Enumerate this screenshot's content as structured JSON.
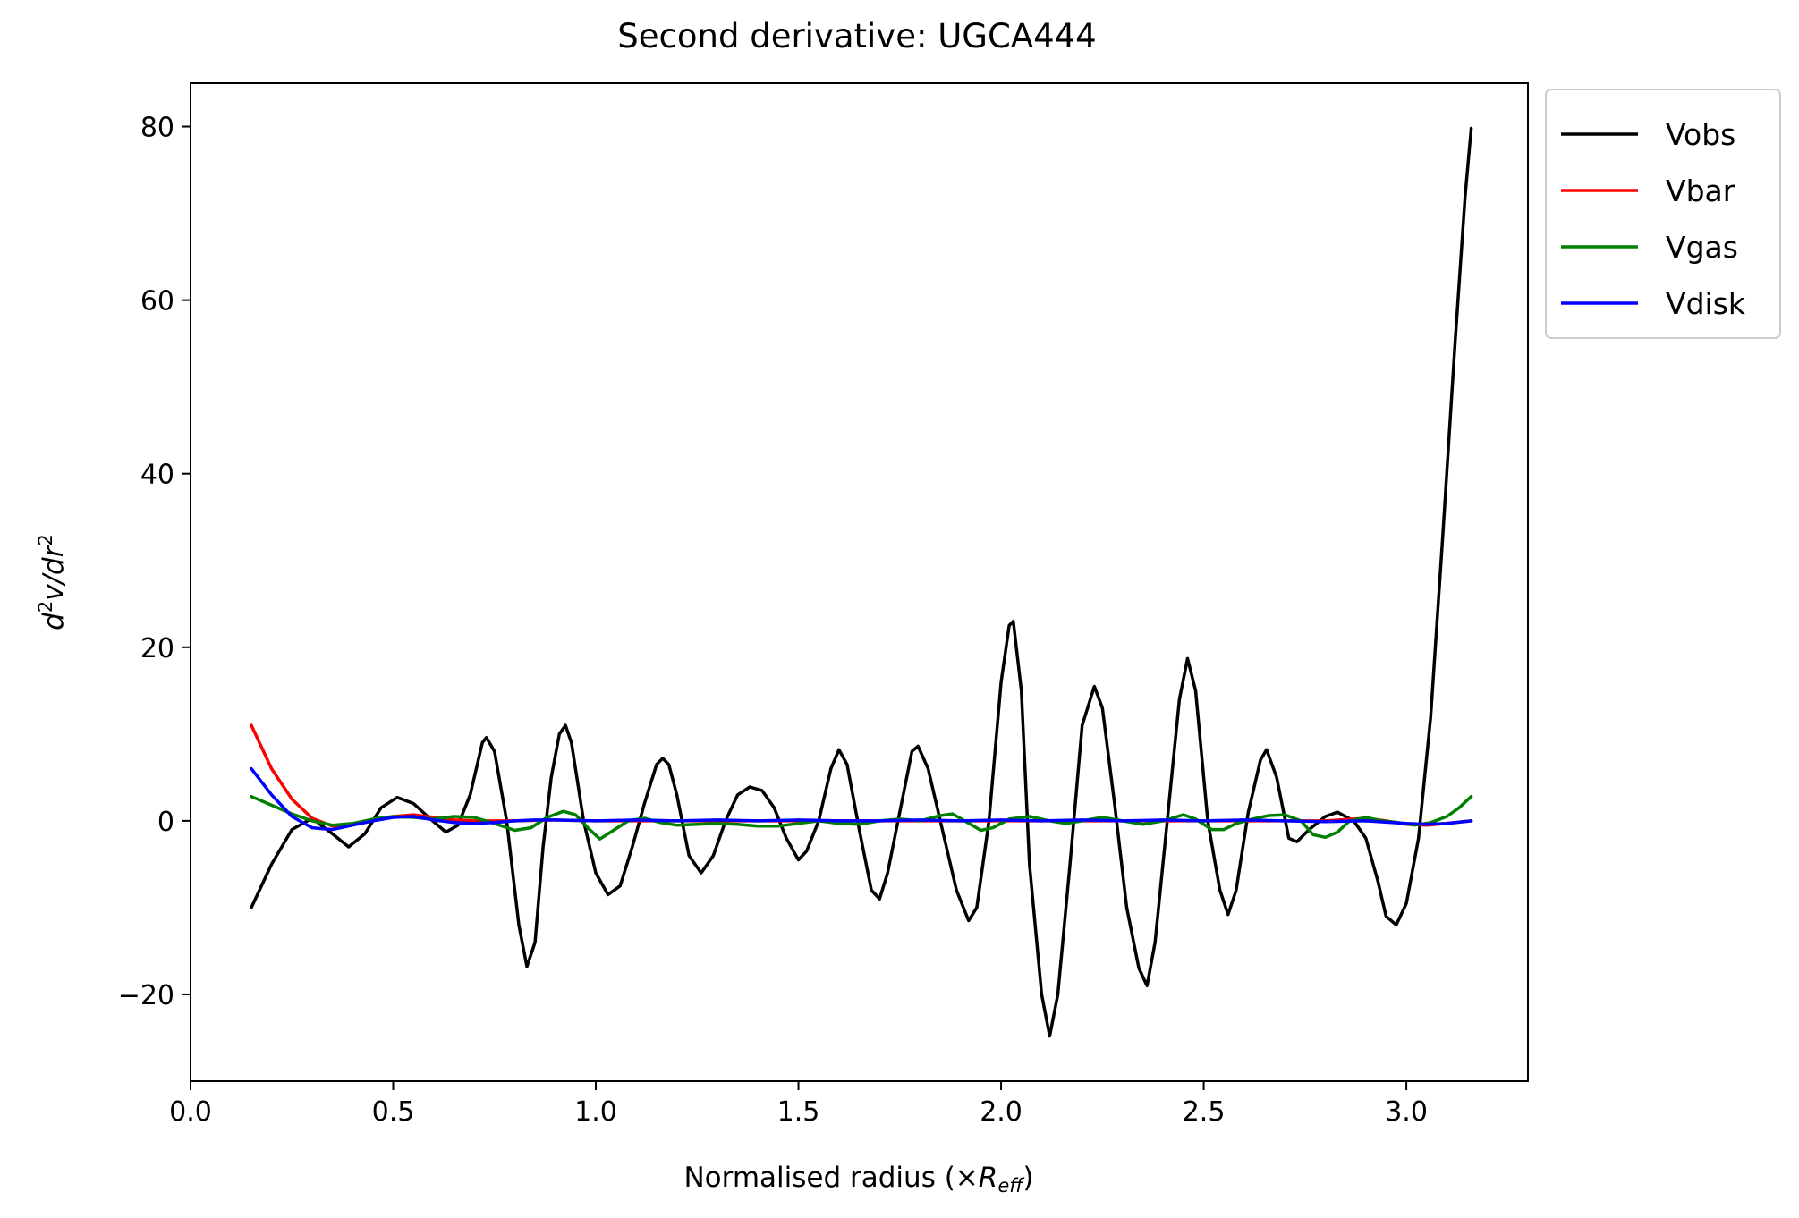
{
  "chart_data": {
    "type": "line",
    "title": "Second derivative: UGCA444",
    "xlabel": {
      "main": "Normalised radius (×",
      "var": "R",
      "sub": "eff",
      "close": ")"
    },
    "ylabel": {
      "d": "d",
      "sup1": "2",
      "mid": "v/dr",
      "sup2": "2"
    },
    "xlim": [
      0.0,
      3.3
    ],
    "ylim": [
      -30,
      85
    ],
    "xticks": [
      0.0,
      0.5,
      1.0,
      1.5,
      2.0,
      2.5,
      3.0
    ],
    "xtick_labels": [
      "0.0",
      "0.5",
      "1.0",
      "1.5",
      "2.0",
      "2.5",
      "3.0"
    ],
    "yticks": [
      -20,
      0,
      20,
      40,
      60,
      80
    ],
    "ytick_labels": [
      "−20",
      "0",
      "20",
      "40",
      "60",
      "80"
    ],
    "grid": false,
    "legend_position": "outside-top-right",
    "series": [
      {
        "name": "Vobs",
        "color": "#000000",
        "points": [
          [
            0.15,
            -10
          ],
          [
            0.2,
            -5
          ],
          [
            0.25,
            -1
          ],
          [
            0.3,
            0.3
          ],
          [
            0.35,
            -1.5
          ],
          [
            0.39,
            -3
          ],
          [
            0.43,
            -1.5
          ],
          [
            0.47,
            1.5
          ],
          [
            0.51,
            2.7
          ],
          [
            0.55,
            2
          ],
          [
            0.59,
            0.3
          ],
          [
            0.63,
            -1.3
          ],
          [
            0.66,
            -0.5
          ],
          [
            0.69,
            3
          ],
          [
            0.72,
            9
          ],
          [
            0.73,
            9.6
          ],
          [
            0.75,
            8
          ],
          [
            0.78,
            0
          ],
          [
            0.81,
            -12
          ],
          [
            0.83,
            -16.8
          ],
          [
            0.85,
            -14
          ],
          [
            0.87,
            -3
          ],
          [
            0.89,
            5
          ],
          [
            0.91,
            10
          ],
          [
            0.925,
            11
          ],
          [
            0.94,
            9
          ],
          [
            0.97,
            0
          ],
          [
            1.0,
            -6
          ],
          [
            1.03,
            -8.5
          ],
          [
            1.06,
            -7.5
          ],
          [
            1.09,
            -3
          ],
          [
            1.12,
            2
          ],
          [
            1.15,
            6.5
          ],
          [
            1.165,
            7.2
          ],
          [
            1.18,
            6.5
          ],
          [
            1.2,
            3
          ],
          [
            1.23,
            -4
          ],
          [
            1.26,
            -6
          ],
          [
            1.29,
            -4
          ],
          [
            1.32,
            0
          ],
          [
            1.35,
            3
          ],
          [
            1.38,
            3.9
          ],
          [
            1.41,
            3.5
          ],
          [
            1.44,
            1.5
          ],
          [
            1.47,
            -2
          ],
          [
            1.5,
            -4.5
          ],
          [
            1.52,
            -3.5
          ],
          [
            1.55,
            0
          ],
          [
            1.58,
            6
          ],
          [
            1.6,
            8.2
          ],
          [
            1.62,
            6.5
          ],
          [
            1.65,
            -1
          ],
          [
            1.68,
            -8
          ],
          [
            1.7,
            -9
          ],
          [
            1.72,
            -6
          ],
          [
            1.75,
            1
          ],
          [
            1.78,
            8
          ],
          [
            1.795,
            8.6
          ],
          [
            1.82,
            6
          ],
          [
            1.85,
            0
          ],
          [
            1.89,
            -8
          ],
          [
            1.92,
            -11.5
          ],
          [
            1.94,
            -10
          ],
          [
            1.97,
            0
          ],
          [
            2.0,
            16
          ],
          [
            2.02,
            22.5
          ],
          [
            2.03,
            23
          ],
          [
            2.05,
            15
          ],
          [
            2.07,
            -5
          ],
          [
            2.1,
            -20
          ],
          [
            2.12,
            -24.8
          ],
          [
            2.14,
            -20
          ],
          [
            2.17,
            -5
          ],
          [
            2.2,
            11
          ],
          [
            2.23,
            15.5
          ],
          [
            2.25,
            13
          ],
          [
            2.28,
            2
          ],
          [
            2.31,
            -10
          ],
          [
            2.34,
            -17
          ],
          [
            2.36,
            -19
          ],
          [
            2.38,
            -14
          ],
          [
            2.41,
            0
          ],
          [
            2.44,
            14
          ],
          [
            2.46,
            18.7
          ],
          [
            2.48,
            15
          ],
          [
            2.51,
            0
          ],
          [
            2.54,
            -8
          ],
          [
            2.56,
            -10.8
          ],
          [
            2.58,
            -8
          ],
          [
            2.61,
            1
          ],
          [
            2.64,
            7
          ],
          [
            2.655,
            8.2
          ],
          [
            2.68,
            5
          ],
          [
            2.71,
            -2
          ],
          [
            2.73,
            -2.4
          ],
          [
            2.76,
            -1
          ],
          [
            2.8,
            0.5
          ],
          [
            2.83,
            1
          ],
          [
            2.87,
            0
          ],
          [
            2.9,
            -2
          ],
          [
            2.93,
            -7
          ],
          [
            2.95,
            -11
          ],
          [
            2.975,
            -12
          ],
          [
            3.0,
            -9.5
          ],
          [
            3.03,
            -2
          ],
          [
            3.06,
            12
          ],
          [
            3.09,
            33
          ],
          [
            3.12,
            55
          ],
          [
            3.145,
            72
          ],
          [
            3.16,
            79.8
          ]
        ]
      },
      {
        "name": "Vbar",
        "color": "#ff0000",
        "points": [
          [
            0.15,
            11
          ],
          [
            0.2,
            6
          ],
          [
            0.25,
            2.5
          ],
          [
            0.3,
            0.3
          ],
          [
            0.35,
            -0.6
          ],
          [
            0.4,
            -0.4
          ],
          [
            0.45,
            0.1
          ],
          [
            0.5,
            0.5
          ],
          [
            0.55,
            0.7
          ],
          [
            0.6,
            0.4
          ],
          [
            0.65,
            0.1
          ],
          [
            0.7,
            0
          ],
          [
            0.8,
            0
          ],
          [
            0.9,
            0.1
          ],
          [
            1.0,
            0
          ],
          [
            1.2,
            0
          ],
          [
            1.4,
            0
          ],
          [
            1.6,
            0
          ],
          [
            1.8,
            0
          ],
          [
            2.0,
            0
          ],
          [
            2.2,
            0
          ],
          [
            2.4,
            0
          ],
          [
            2.6,
            0
          ],
          [
            2.8,
            0
          ],
          [
            2.9,
            0.3
          ],
          [
            2.95,
            0
          ],
          [
            3.0,
            -0.4
          ],
          [
            3.05,
            -0.5
          ],
          [
            3.1,
            -0.3
          ],
          [
            3.16,
            0
          ]
        ]
      },
      {
        "name": "Vgas",
        "color": "#008000",
        "points": [
          [
            0.15,
            2.8
          ],
          [
            0.2,
            1.8
          ],
          [
            0.25,
            0.8
          ],
          [
            0.3,
            0
          ],
          [
            0.35,
            -0.5
          ],
          [
            0.4,
            -0.3
          ],
          [
            0.45,
            0.2
          ],
          [
            0.5,
            0.5
          ],
          [
            0.55,
            0.4
          ],
          [
            0.6,
            0.2
          ],
          [
            0.65,
            0.5
          ],
          [
            0.7,
            0.4
          ],
          [
            0.75,
            -0.3
          ],
          [
            0.8,
            -1.1
          ],
          [
            0.84,
            -0.8
          ],
          [
            0.88,
            0.4
          ],
          [
            0.92,
            1.1
          ],
          [
            0.95,
            0.7
          ],
          [
            0.98,
            -0.8
          ],
          [
            1.01,
            -2.1
          ],
          [
            1.04,
            -1.2
          ],
          [
            1.08,
            0
          ],
          [
            1.12,
            0.3
          ],
          [
            1.16,
            -0.2
          ],
          [
            1.2,
            -0.5
          ],
          [
            1.25,
            -0.4
          ],
          [
            1.3,
            -0.3
          ],
          [
            1.35,
            -0.4
          ],
          [
            1.4,
            -0.6
          ],
          [
            1.45,
            -0.6
          ],
          [
            1.5,
            -0.3
          ],
          [
            1.55,
            0
          ],
          [
            1.6,
            -0.3
          ],
          [
            1.65,
            -0.4
          ],
          [
            1.7,
            0
          ],
          [
            1.75,
            0.2
          ],
          [
            1.8,
            0
          ],
          [
            1.85,
            0.6
          ],
          [
            1.88,
            0.8
          ],
          [
            1.91,
            0
          ],
          [
            1.95,
            -1.1
          ],
          [
            1.98,
            -0.8
          ],
          [
            2.02,
            0.2
          ],
          [
            2.07,
            0.5
          ],
          [
            2.12,
            0
          ],
          [
            2.16,
            -0.3
          ],
          [
            2.2,
            0
          ],
          [
            2.25,
            0.4
          ],
          [
            2.3,
            0
          ],
          [
            2.35,
            -0.4
          ],
          [
            2.4,
            0
          ],
          [
            2.45,
            0.7
          ],
          [
            2.48,
            0.2
          ],
          [
            2.52,
            -1
          ],
          [
            2.55,
            -1
          ],
          [
            2.58,
            -0.3
          ],
          [
            2.62,
            0.2
          ],
          [
            2.66,
            0.6
          ],
          [
            2.7,
            0.7
          ],
          [
            2.74,
            0
          ],
          [
            2.77,
            -1.6
          ],
          [
            2.8,
            -1.9
          ],
          [
            2.83,
            -1.3
          ],
          [
            2.86,
            0
          ],
          [
            2.9,
            0.4
          ],
          [
            2.94,
            0
          ],
          [
            2.98,
            -0.2
          ],
          [
            3.02,
            -0.5
          ],
          [
            3.06,
            -0.2
          ],
          [
            3.1,
            0.5
          ],
          [
            3.13,
            1.5
          ],
          [
            3.16,
            2.8
          ]
        ]
      },
      {
        "name": "Vdisk",
        "color": "#0000ff",
        "points": [
          [
            0.15,
            6
          ],
          [
            0.2,
            3
          ],
          [
            0.25,
            0.5
          ],
          [
            0.3,
            -0.8
          ],
          [
            0.35,
            -1
          ],
          [
            0.4,
            -0.5
          ],
          [
            0.45,
            0
          ],
          [
            0.5,
            0.4
          ],
          [
            0.55,
            0.5
          ],
          [
            0.6,
            0.1
          ],
          [
            0.65,
            -0.2
          ],
          [
            0.7,
            -0.3
          ],
          [
            0.75,
            -0.2
          ],
          [
            0.8,
            0
          ],
          [
            0.85,
            0.1
          ],
          [
            0.9,
            0.1
          ],
          [
            1.0,
            0
          ],
          [
            1.1,
            0.1
          ],
          [
            1.2,
            0
          ],
          [
            1.3,
            0.1
          ],
          [
            1.4,
            0
          ],
          [
            1.5,
            0.1
          ],
          [
            1.6,
            0
          ],
          [
            1.7,
            0
          ],
          [
            1.8,
            0.1
          ],
          [
            1.9,
            0
          ],
          [
            2.0,
            0.1
          ],
          [
            2.1,
            0
          ],
          [
            2.2,
            0.1
          ],
          [
            2.3,
            0
          ],
          [
            2.4,
            0.1
          ],
          [
            2.5,
            0
          ],
          [
            2.6,
            0.1
          ],
          [
            2.7,
            0
          ],
          [
            2.8,
            -0.1
          ],
          [
            2.9,
            0
          ],
          [
            3.0,
            -0.3
          ],
          [
            3.05,
            -0.4
          ],
          [
            3.1,
            -0.3
          ],
          [
            3.16,
            0
          ]
        ]
      }
    ]
  }
}
